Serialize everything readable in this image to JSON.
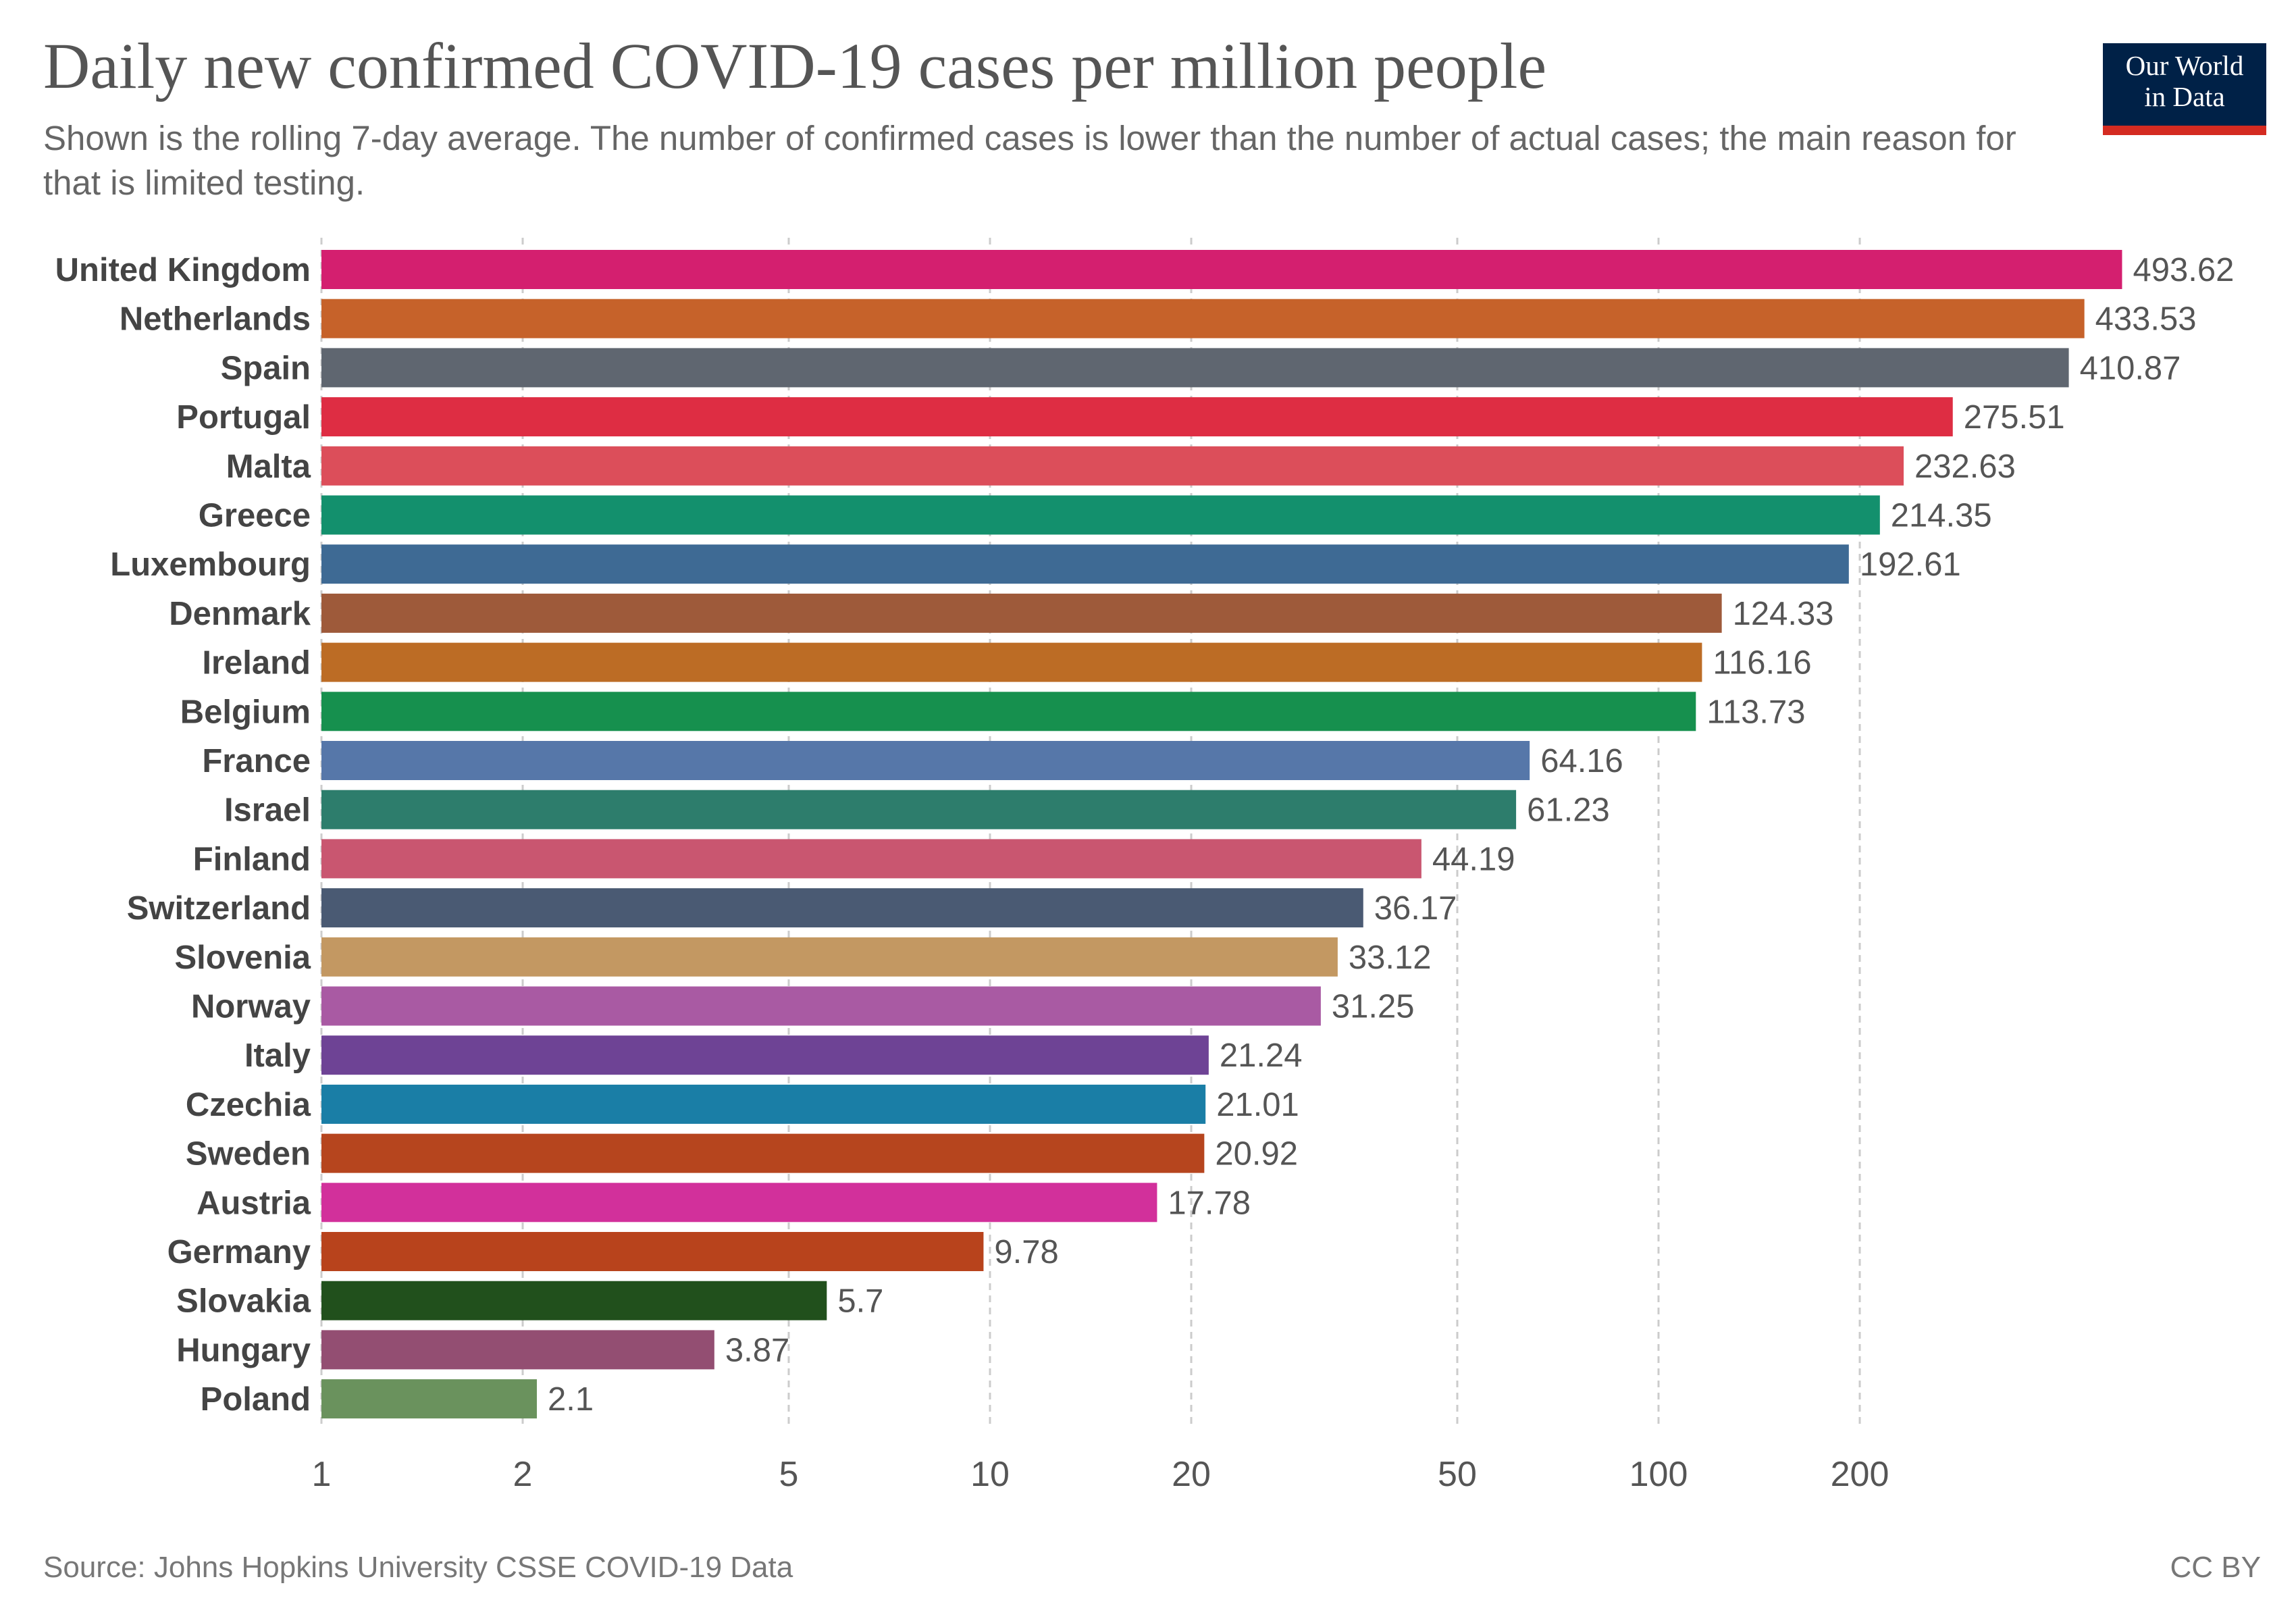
{
  "header": {
    "title": "Daily new confirmed COVID-19 cases per million people",
    "subtitle": "Shown is the rolling 7-day average. The number of confirmed cases is lower than the number of actual cases; the main reason for that is limited testing.",
    "logo_line1": "Our World",
    "logo_line2": "in Data"
  },
  "footer": {
    "source": "Source: Johns Hopkins University CSSE COVID-19 Data",
    "license": "CC BY"
  },
  "colors": {
    "logo_bg": "#002147",
    "logo_accent": "#d42b21",
    "gridline": "#cccccc"
  },
  "chart_data": {
    "type": "bar",
    "orientation": "horizontal",
    "scale": "log",
    "title": "Daily new confirmed COVID-19 cases per million people",
    "xlabel": "",
    "ylabel": "",
    "xlim": [
      1,
      600
    ],
    "x_ticks": [
      1,
      2,
      5,
      10,
      20,
      50,
      100,
      200
    ],
    "grid": true,
    "categories": [
      "United Kingdom",
      "Netherlands",
      "Spain",
      "Portugal",
      "Malta",
      "Greece",
      "Luxembourg",
      "Denmark",
      "Ireland",
      "Belgium",
      "France",
      "Israel",
      "Finland",
      "Switzerland",
      "Slovenia",
      "Norway",
      "Italy",
      "Czechia",
      "Sweden",
      "Austria",
      "Germany",
      "Slovakia",
      "Hungary",
      "Poland"
    ],
    "values": [
      493.62,
      433.53,
      410.87,
      275.51,
      232.63,
      214.35,
      192.61,
      124.33,
      116.16,
      113.73,
      64.16,
      61.23,
      44.19,
      36.17,
      33.12,
      31.25,
      21.24,
      21.01,
      20.92,
      17.78,
      9.78,
      5.7,
      3.87,
      2.1
    ],
    "value_labels": [
      "493.62",
      "433.53",
      "410.87",
      "275.51",
      "232.63",
      "214.35",
      "192.61",
      "124.33",
      "116.16",
      "113.73",
      "64.16",
      "61.23",
      "44.19",
      "36.17",
      "33.12",
      "31.25",
      "21.24",
      "21.01",
      "20.92",
      "17.78",
      "9.78",
      "5.7",
      "3.87",
      "2.1"
    ],
    "bar_colors": [
      "#d41f6f",
      "#c6622a",
      "#5f6670",
      "#de2d43",
      "#dc4e5a",
      "#13906d",
      "#3e6a94",
      "#9e5a3a",
      "#bc6c25",
      "#16904e",
      "#5677a9",
      "#2d7d6c",
      "#c95670",
      "#4a5a73",
      "#c39862",
      "#a95aa3",
      "#6e4395",
      "#1a7ea6",
      "#b6451e",
      "#d2309b",
      "#b8431c",
      "#21501c",
      "#934e72",
      "#6a925d"
    ]
  }
}
